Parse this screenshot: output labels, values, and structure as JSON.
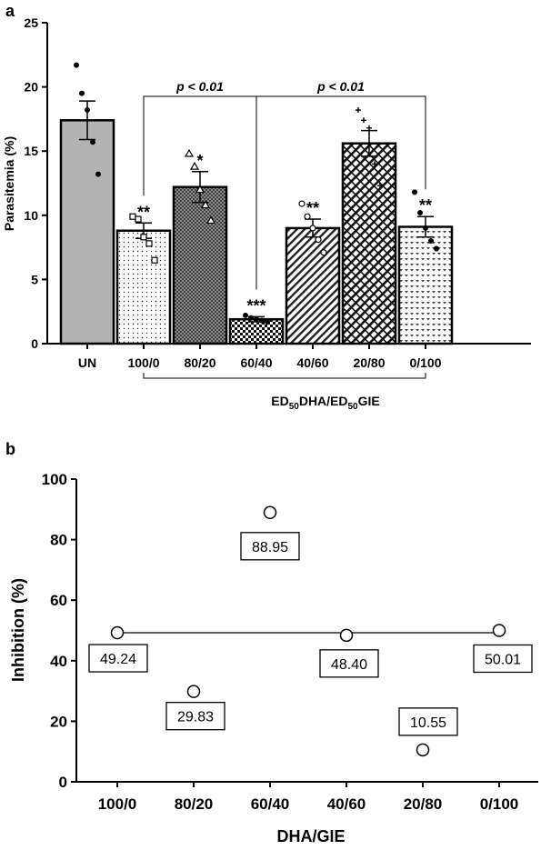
{
  "chart_data": [
    {
      "panel_label": "a",
      "type": "bar",
      "ylabel": "Parasitemia (%)",
      "ylim": [
        0,
        25
      ],
      "yticks": [
        "0",
        "5",
        "10",
        "15",
        "20",
        "25"
      ],
      "categories": [
        "UN",
        "100/0",
        "80/20",
        "60/40",
        "40/60",
        "20/80",
        "0/100"
      ],
      "values": [
        17.4,
        8.8,
        12.2,
        1.9,
        9.0,
        15.6,
        9.1
      ],
      "sem": [
        1.5,
        0.6,
        1.2,
        0.2,
        0.7,
        1.0,
        0.8
      ],
      "significance": [
        "",
        "**",
        "*",
        "***",
        "**",
        "",
        "**"
      ],
      "points": [
        [
          21.7,
          19.5,
          18.2,
          15.7,
          13.2
        ],
        [
          9.9,
          9.7,
          8.3,
          7.8,
          6.5
        ],
        [
          14.8,
          13.8,
          12.0,
          10.8,
          9.6
        ],
        [
          2.2,
          2.0,
          1.9,
          1.8,
          1.7
        ],
        [
          10.9,
          9.9,
          9.0,
          8.1,
          7.1
        ],
        [
          18.2,
          17.4,
          16.8,
          14.0,
          12.3
        ],
        [
          11.8,
          10.2,
          9.0,
          8.0,
          7.4
        ]
      ],
      "point_markers": [
        "dot",
        "square",
        "triangle",
        "dot",
        "circle",
        "plus",
        "dot"
      ],
      "brackets": [
        {
          "label": "p < 0.01",
          "from": "100/0",
          "to": "60/40"
        },
        {
          "label": "p < 0.01",
          "from": "60/40",
          "to": "0/100"
        }
      ],
      "xlabel": {
        "pre": "ED",
        "sub1": "50",
        "mid": "DHA/ED",
        "sub2": "50",
        "post": "GIE"
      },
      "bar_fill": [
        "gray",
        "dots",
        "dense-dots",
        "checker",
        "diagonal",
        "crosshatch",
        "hearts"
      ],
      "grid": false
    },
    {
      "panel_label": "b",
      "type": "scatter",
      "ylabel": "Inhibition (%)",
      "xlabel": "DHA/GIE",
      "ylim": [
        0,
        100
      ],
      "yticks": [
        "0",
        "20",
        "40",
        "60",
        "80",
        "100"
      ],
      "categories": [
        "100/0",
        "80/20",
        "60/40",
        "40/60",
        "20/80",
        "0/100"
      ],
      "values": [
        49.24,
        29.83,
        88.95,
        48.4,
        10.55,
        50.01
      ],
      "value_labels": [
        "49.24",
        "29.83",
        "88.95",
        "48.40",
        "10.55",
        "50.01"
      ],
      "additivity_line": 49.24,
      "grid": false
    }
  ]
}
